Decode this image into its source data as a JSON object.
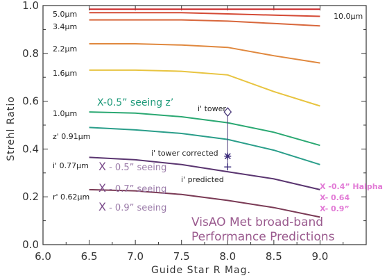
{
  "chart_data": {
    "type": "line",
    "xlabel": "Guide Star R Mag.",
    "ylabel": "Strehl Ratio",
    "xlim": [
      6.0,
      9.5
    ],
    "ylim": [
      0.0,
      1.0
    ],
    "x_ticks": [
      "6.0",
      "6.5",
      "7.0",
      "7.5",
      "8.0",
      "8.5",
      "9.0"
    ],
    "y_ticks": [
      "0.0",
      "0.2",
      "0.4",
      "0.6",
      "0.8",
      "1.0"
    ],
    "x_tick_values": [
      6.0,
      6.5,
      7.0,
      7.5,
      8.0,
      8.5,
      9.0
    ],
    "y_tick_values": [
      0.0,
      0.2,
      0.4,
      0.6,
      0.8,
      1.0
    ],
    "x": [
      6.5,
      7.0,
      7.5,
      8.0,
      8.5,
      9.0
    ],
    "series": [
      {
        "name": "10.0µm",
        "color": "#cc2a2a",
        "values": [
          0.985,
          0.985,
          0.985,
          0.985,
          0.985,
          0.985
        ]
      },
      {
        "name": "5.0µm",
        "color": "#d44a35",
        "values": [
          0.97,
          0.97,
          0.97,
          0.965,
          0.96,
          0.955
        ]
      },
      {
        "name": "3.4µm",
        "color": "#d8673c",
        "values": [
          0.94,
          0.94,
          0.94,
          0.935,
          0.925,
          0.915
        ]
      },
      {
        "name": "2.2µm",
        "color": "#e0883e",
        "values": [
          0.84,
          0.84,
          0.835,
          0.825,
          0.79,
          0.76
        ]
      },
      {
        "name": "1.6µm",
        "color": "#e8c440",
        "values": [
          0.73,
          0.73,
          0.725,
          0.71,
          0.64,
          0.58
        ]
      },
      {
        "name": "1.0µm",
        "color": "#2aa872",
        "values": [
          0.555,
          0.55,
          0.535,
          0.51,
          0.47,
          0.415
        ]
      },
      {
        "name": "z' 0.91µm",
        "color": "#2a9e8a",
        "values": [
          0.49,
          0.48,
          0.465,
          0.44,
          0.395,
          0.335
        ]
      },
      {
        "name": "i' 0.77µm",
        "color": "#5a3570",
        "values": [
          0.365,
          0.355,
          0.335,
          0.305,
          0.275,
          0.23
        ]
      },
      {
        "name": "r' 0.62µm",
        "color": "#7a3a55",
        "values": [
          0.23,
          0.225,
          0.21,
          0.185,
          0.155,
          0.115
        ]
      }
    ],
    "markers": [
      {
        "label": "i' tower",
        "x": 8.0,
        "y": 0.555,
        "shape": "diamond"
      },
      {
        "label": "i' tower corrected",
        "x": 8.0,
        "y": 0.37,
        "shape": "asterisk"
      },
      {
        "label": "i' predicted",
        "x": 8.0,
        "y": 0.325,
        "shape": "cross"
      }
    ],
    "annotations": {
      "seeing_z": "X-0.5” seeing z’",
      "x_05": "X",
      "x_05_text": " - 0.5” seeing",
      "x_07": "X",
      "x_07_text": " - 0.7” seeing",
      "x_09": "X",
      "x_09_text": " - 0.9” seeing",
      "halpha_1": "X -0.4” Halpha",
      "halpha_2": "X- 0.64",
      "halpha_3": "X- 0.9”",
      "title_1": "VisAO Met broad-band",
      "title_2": "Performance Predictions"
    },
    "colors": {
      "axis": "#333333",
      "seeing_z": "#1f9a7a",
      "x_seeing": "#7a4a8a",
      "title": "#9a5a8e",
      "halpha": "#e27bd6"
    }
  }
}
